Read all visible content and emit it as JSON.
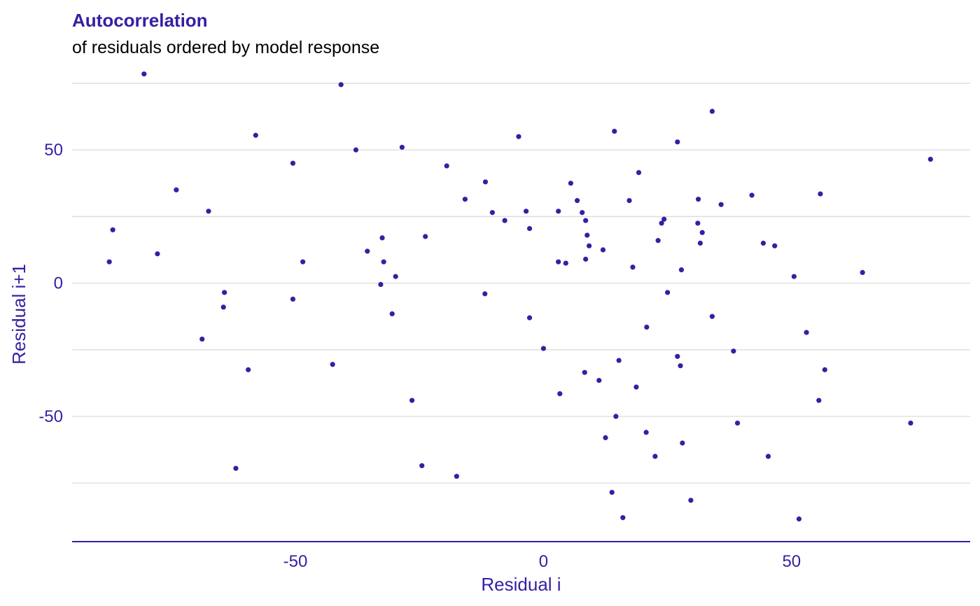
{
  "chart_data": {
    "type": "scatter",
    "title": "Autocorrelation",
    "subtitle": "of residuals ordered by model response",
    "xlabel": "Residual i",
    "ylabel": "Residual i+1",
    "xlim": [
      -95,
      86
    ],
    "ylim": [
      -97,
      80
    ],
    "x_ticks": [
      -50,
      0,
      50
    ],
    "y_ticks": [
      -50,
      0,
      50
    ],
    "grid": "horizontal",
    "point_color": "#371ea3",
    "points": [
      [
        -87.5,
        8
      ],
      [
        -86.8,
        20
      ],
      [
        -80.5,
        78.5
      ],
      [
        -77.8,
        11
      ],
      [
        -74,
        35
      ],
      [
        -68.8,
        -21
      ],
      [
        -67.5,
        27
      ],
      [
        -64.3,
        -3.5
      ],
      [
        -64.5,
        -9
      ],
      [
        -58,
        55.5
      ],
      [
        -62,
        -69.5
      ],
      [
        -59.5,
        -32.5
      ],
      [
        -50.5,
        45
      ],
      [
        -50.5,
        -6
      ],
      [
        -48.5,
        8
      ],
      [
        -42.5,
        -30.5
      ],
      [
        -40.8,
        74.5
      ],
      [
        -37.8,
        50
      ],
      [
        -35.5,
        12
      ],
      [
        -32.5,
        17
      ],
      [
        -32.2,
        8
      ],
      [
        -32.8,
        -0.5
      ],
      [
        -30.5,
        -11.5
      ],
      [
        -29.8,
        2.5
      ],
      [
        -28.5,
        51
      ],
      [
        -26.5,
        -44
      ],
      [
        -24.5,
        -68.5
      ],
      [
        -23.8,
        17.5
      ],
      [
        -19.5,
        44
      ],
      [
        -17.5,
        -72.5
      ],
      [
        -15.8,
        31.5
      ],
      [
        -11.7,
        38
      ],
      [
        -11.8,
        -4
      ],
      [
        -10.3,
        26.5
      ],
      [
        -7.8,
        23.5
      ],
      [
        -5,
        55
      ],
      [
        -3.5,
        27
      ],
      [
        -2.8,
        20.5
      ],
      [
        -2.8,
        -13
      ],
      [
        0,
        -24.5
      ],
      [
        3,
        27
      ],
      [
        3,
        8
      ],
      [
        3.3,
        -41.5
      ],
      [
        4.5,
        7.5
      ],
      [
        5.5,
        37.5
      ],
      [
        6.8,
        31
      ],
      [
        7.8,
        26.5
      ],
      [
        8.5,
        23.5
      ],
      [
        8.8,
        18
      ],
      [
        9.2,
        14
      ],
      [
        8.3,
        -33.5
      ],
      [
        8.5,
        9
      ],
      [
        11.2,
        -36.5
      ],
      [
        12,
        12.5
      ],
      [
        12.5,
        -58
      ],
      [
        13.8,
        -78.5
      ],
      [
        14.3,
        57
      ],
      [
        14.6,
        -50
      ],
      [
        15.2,
        -29
      ],
      [
        16,
        -88
      ],
      [
        17.3,
        31
      ],
      [
        18,
        6
      ],
      [
        18.7,
        -39
      ],
      [
        19.2,
        41.5
      ],
      [
        20.8,
        -16.5
      ],
      [
        20.7,
        -56
      ],
      [
        22.5,
        -65
      ],
      [
        23.1,
        16
      ],
      [
        23.8,
        22.5
      ],
      [
        24.3,
        24
      ],
      [
        25,
        -3.5
      ],
      [
        27,
        53
      ],
      [
        27,
        -27.5
      ],
      [
        27.6,
        -31
      ],
      [
        27.8,
        5
      ],
      [
        28,
        -60
      ],
      [
        29.7,
        -81.5
      ],
      [
        31.2,
        31.5
      ],
      [
        31.1,
        22.5
      ],
      [
        31.6,
        15
      ],
      [
        32,
        19
      ],
      [
        34,
        64.5
      ],
      [
        34,
        -12.5
      ],
      [
        35.8,
        29.5
      ],
      [
        38.3,
        -25.5
      ],
      [
        39.1,
        -52.5
      ],
      [
        42,
        33
      ],
      [
        44.3,
        15
      ],
      [
        45.3,
        -65
      ],
      [
        46.6,
        14
      ],
      [
        50.5,
        2.5
      ],
      [
        51.5,
        -88.5
      ],
      [
        53,
        -18.5
      ],
      [
        55.5,
        -44
      ],
      [
        55.8,
        33.5
      ],
      [
        56.7,
        -32.5
      ],
      [
        64.3,
        4
      ],
      [
        74,
        -52.5
      ],
      [
        78,
        46.5
      ]
    ]
  }
}
